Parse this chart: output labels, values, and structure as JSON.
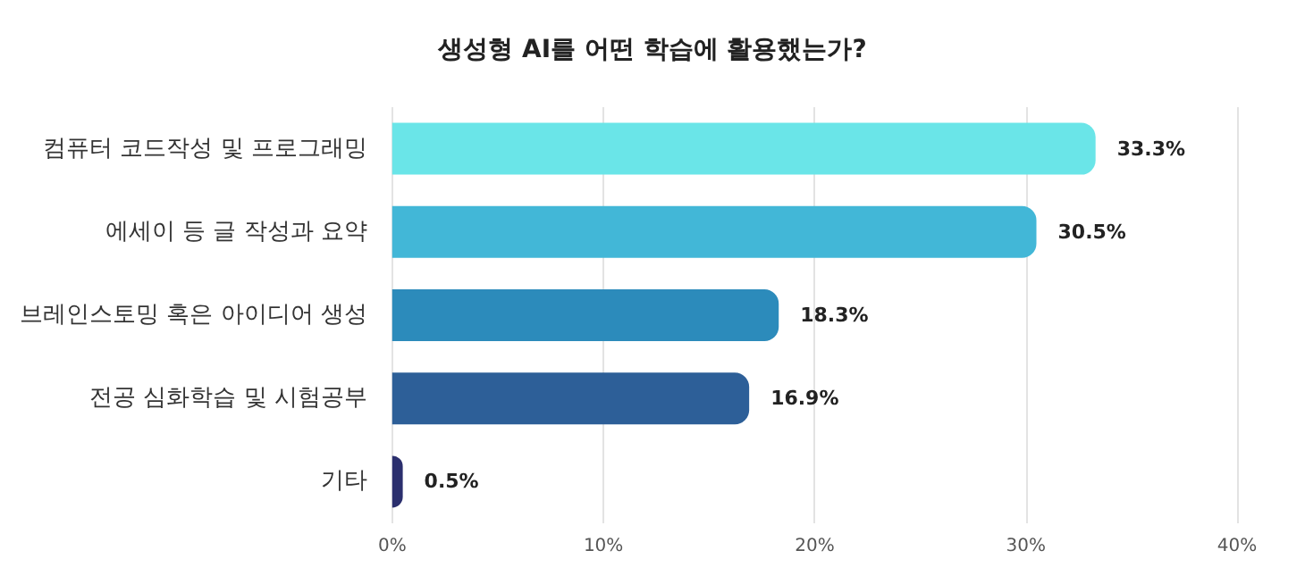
{
  "chart_data": {
    "type": "bar",
    "orientation": "horizontal",
    "title": "생성형 AI를 어떤 학습에 활용했는가?",
    "categories": [
      "컴퓨터 코드작성 및 프로그래밍",
      "에세이 등 글 작성과 요약",
      "브레인스토밍 혹은 아이디어 생성",
      "전공 심화학습 및 시험공부",
      "기타"
    ],
    "values": [
      33.3,
      30.5,
      18.3,
      16.9,
      0.5
    ],
    "colors": [
      "#6ae5e8",
      "#42b7d7",
      "#2c8bbb",
      "#2d5f98",
      "#2b2f6e"
    ],
    "value_labels": [
      "33.3%",
      "30.5%",
      "18.3%",
      "16.9%",
      "0.5%"
    ],
    "xlim": [
      0,
      40
    ],
    "xticks": [
      {
        "value": 0,
        "label": "0%"
      },
      {
        "value": 10,
        "label": "10%"
      },
      {
        "value": 20,
        "label": "20%"
      },
      {
        "value": 30,
        "label": "30%"
      },
      {
        "value": 40,
        "label": "40%"
      }
    ],
    "grid": "x"
  }
}
